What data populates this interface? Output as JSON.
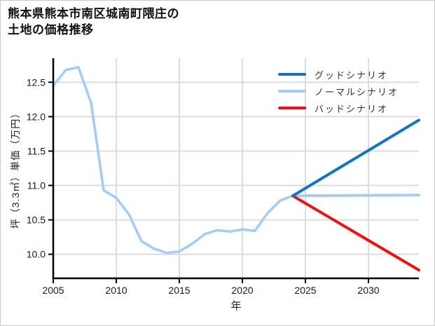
{
  "title": {
    "line1": "熊本県熊本市南区城南町隈庄の",
    "line2": "土地の価格推移"
  },
  "colors": {
    "good": "#1173c8",
    "normal": "#a7ccf3",
    "bad": "#ee1111",
    "historical": "#a7ccf3",
    "grid": "#d9d9d9",
    "axis": "#000000"
  },
  "legend": {
    "items": [
      {
        "label": "グッドシナリオ",
        "color": "#1173c8"
      },
      {
        "label": "ノーマルシナリオ",
        "color": "#a7ccf3"
      },
      {
        "label": "バッドシナリオ",
        "color": "#ee1111"
      }
    ]
  },
  "chart_data": {
    "type": "line",
    "title": "熊本県熊本市南区城南町隈庄の土地の価格推移",
    "xlabel": "年",
    "ylabel": "坪（3.3㎡）単価（万円）",
    "xlim": [
      2005,
      2034
    ],
    "ylim": [
      9.65,
      12.85
    ],
    "grid": true,
    "legend_position": "upper right",
    "xticks": [
      {
        "v": 2005,
        "label": "2005"
      },
      {
        "v": 2010,
        "label": "2010"
      },
      {
        "v": 2015,
        "label": "2015"
      },
      {
        "v": 2020,
        "label": "2020"
      },
      {
        "v": 2025,
        "label": "2025"
      },
      {
        "v": 2030,
        "label": "2030"
      }
    ],
    "yticks": [
      {
        "v": 10.0,
        "label": "10.0"
      },
      {
        "v": 10.5,
        "label": "10.5"
      },
      {
        "v": 11.0,
        "label": "11.0"
      },
      {
        "v": 11.5,
        "label": "11.5"
      },
      {
        "v": 12.0,
        "label": "12.0"
      },
      {
        "v": 12.5,
        "label": "12.5"
      }
    ],
    "series": [
      {
        "name": "historical",
        "color": "#a7ccf3",
        "width": 3.6,
        "points": [
          [
            2005,
            12.45
          ],
          [
            2006,
            12.68
          ],
          [
            2007,
            12.72
          ],
          [
            2008,
            12.2
          ],
          [
            2009,
            10.93
          ],
          [
            2010,
            10.82
          ],
          [
            2011,
            10.58
          ],
          [
            2012,
            10.19
          ],
          [
            2013,
            10.08
          ],
          [
            2014,
            10.02
          ],
          [
            2015,
            10.04
          ],
          [
            2016,
            10.15
          ],
          [
            2017,
            10.29
          ],
          [
            2018,
            10.35
          ],
          [
            2019,
            10.33
          ],
          [
            2020,
            10.36
          ],
          [
            2021,
            10.34
          ],
          [
            2022,
            10.6
          ],
          [
            2023,
            10.78
          ],
          [
            2024,
            10.85
          ]
        ]
      },
      {
        "name": "ノーマルシナリオ",
        "color": "#a7ccf3",
        "width": 4,
        "points": [
          [
            2024,
            10.85
          ],
          [
            2034,
            10.86
          ]
        ]
      },
      {
        "name": "バッドシナリオ",
        "color": "#ee1111",
        "width": 4,
        "points": [
          [
            2024,
            10.85
          ],
          [
            2034,
            9.77
          ]
        ]
      },
      {
        "name": "グッドシナリオ",
        "color": "#1173c8",
        "width": 4,
        "points": [
          [
            2024,
            10.85
          ],
          [
            2034,
            11.95
          ]
        ]
      }
    ]
  }
}
